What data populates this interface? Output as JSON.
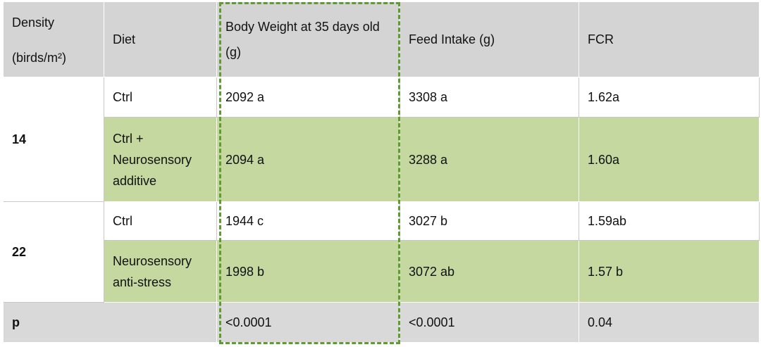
{
  "table": {
    "header": [
      "Density (birds/m²)",
      "Diet",
      "Body Weight at 35 days old (g)",
      "Feed Intake (g)",
      "FCR"
    ],
    "groups": [
      {
        "density": "14",
        "rows": [
          [
            "Ctrl",
            "2092 a",
            "3308 a",
            "1.62a"
          ],
          [
            "Ctrl + Neurosensory additive",
            "2094 a",
            "3288 a",
            "1.60a"
          ]
        ]
      },
      {
        "density": "22",
        "rows": [
          [
            "Ctrl",
            "1944 c",
            "3027 b",
            "1.59ab"
          ],
          [
            "Neurosensory anti-stress",
            "1998 b",
            "3072 ab",
            "1.57 b"
          ]
        ]
      }
    ],
    "p_row": [
      "p",
      "<0.0001",
      "<0.0001",
      "0.04"
    ]
  }
}
